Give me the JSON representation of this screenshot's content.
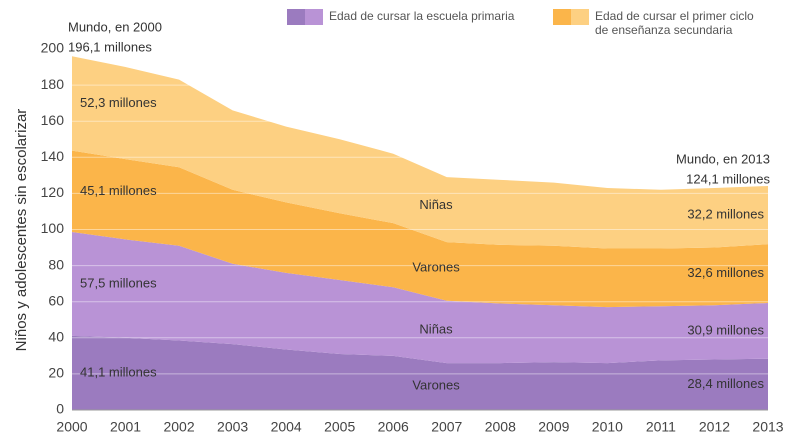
{
  "chart_data": {
    "type": "stacked_area",
    "y_label": "Niños y adolescentes sin escolarizar",
    "x": [
      2000,
      2001,
      2002,
      2003,
      2004,
      2005,
      2006,
      2007,
      2008,
      2009,
      2010,
      2011,
      2012,
      2013
    ],
    "xlim": [
      2000,
      2013
    ],
    "xticks": [
      2000,
      2001,
      2002,
      2003,
      2004,
      2005,
      2006,
      2007,
      2008,
      2009,
      2010,
      2011,
      2012,
      2013
    ],
    "ylim": [
      0,
      200
    ],
    "yticks": [
      0,
      20,
      40,
      60,
      80,
      100,
      120,
      140,
      160,
      180,
      200
    ],
    "grid": true,
    "legend": [
      {
        "lines": [
          "Edad de cursar la escuela primaria"
        ],
        "colors": [
          "#9b7bbf",
          "#b993d6"
        ]
      },
      {
        "lines": [
          "Edad de cursar el primer ciclo",
          "de enseñanza secundaria"
        ],
        "colors": [
          "#fbb54a",
          "#fdd082"
        ]
      }
    ],
    "series": [
      {
        "name": "Varones",
        "color": "#9b7bbf",
        "values": [
          41.1,
          40,
          38.5,
          36.5,
          33.5,
          31,
          30,
          26,
          26,
          26.5,
          26,
          27.5,
          28,
          28.4
        ],
        "value_labels": [
          "41,1 millones",
          null,
          null,
          null,
          null,
          null,
          null,
          null,
          null,
          null,
          null,
          null,
          null,
          "28,4 millones"
        ]
      },
      {
        "name": "Niñas",
        "color": "#b993d6",
        "values": [
          57.5,
          54.5,
          52.5,
          44.5,
          42.5,
          41,
          38,
          34.5,
          33,
          31.5,
          31,
          30,
          30,
          30.9
        ],
        "value_labels": [
          "57,5 millones",
          null,
          null,
          null,
          null,
          null,
          null,
          null,
          null,
          null,
          null,
          null,
          null,
          "30,9 millones"
        ]
      },
      {
        "name": "Varones",
        "color": "#fbb54a",
        "values": [
          45.1,
          44.5,
          43.5,
          41,
          39,
          37,
          35.5,
          32.5,
          32.5,
          33,
          32.5,
          32,
          32,
          32.6
        ],
        "value_labels": [
          "45,1 millones",
          null,
          null,
          null,
          null,
          null,
          null,
          null,
          null,
          null,
          null,
          null,
          null,
          "32,6 millones"
        ]
      },
      {
        "name": "Niñas",
        "color": "#fdd082",
        "values": [
          52.3,
          51,
          48.5,
          44,
          42,
          41,
          38.5,
          36,
          36,
          35,
          33.5,
          32.5,
          33,
          32.2
        ],
        "value_labels": [
          "52,3 millones",
          null,
          null,
          null,
          null,
          null,
          null,
          null,
          null,
          null,
          null,
          null,
          null,
          "32,2 millones"
        ]
      }
    ],
    "annotations": [
      {
        "lines": [
          "Mundo, en 2000",
          "196,1 millones"
        ]
      },
      {
        "lines": [
          "Mundo, en 2013",
          "124,1 millones"
        ]
      }
    ]
  }
}
